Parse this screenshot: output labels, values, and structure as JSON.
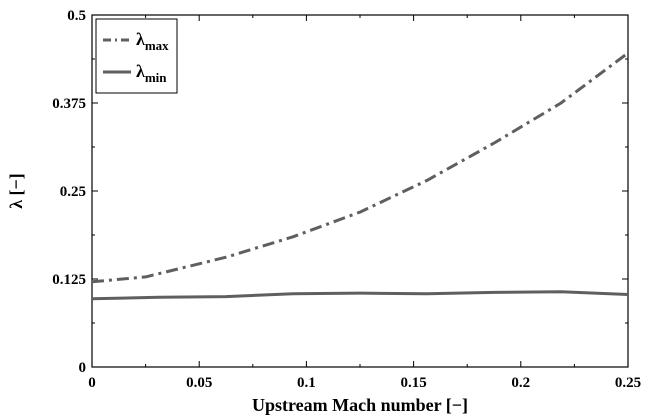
{
  "chart_data": {
    "type": "line",
    "xlabel": "Upstream Mach number [−]",
    "ylabel": "λ [−]",
    "xlim": [
      0,
      0.25
    ],
    "ylim": [
      0,
      0.5
    ],
    "x_ticks": [
      0,
      0.05,
      0.1,
      0.15,
      0.2,
      0.25
    ],
    "x_tick_labels": [
      "0",
      "0.05",
      "0.1",
      "0.15",
      "0.2",
      "0.25"
    ],
    "y_ticks": [
      0,
      0.125,
      0.25,
      0.375,
      0.5
    ],
    "y_tick_labels": [
      "0",
      "0.125",
      "0.25",
      "0.375",
      "0.5"
    ],
    "grid": false,
    "legend": "top-left",
    "series": [
      {
        "name": "λmax",
        "label_main": "λ",
        "label_sub": "max",
        "style": "dash-dot",
        "color": "#5f5f5f",
        "x": [
          0,
          0.025,
          0.0625,
          0.09375,
          0.125,
          0.15625,
          0.1875,
          0.21875,
          0.25
        ],
        "y": [
          0.121,
          0.128,
          0.156,
          0.185,
          0.22,
          0.265,
          0.318,
          0.375,
          0.446
        ]
      },
      {
        "name": "λmin",
        "label_main": "λ",
        "label_sub": "min",
        "style": "solid",
        "color": "#5f5f5f",
        "x": [
          0,
          0.03125,
          0.0625,
          0.09375,
          0.125,
          0.15625,
          0.1875,
          0.21875,
          0.25
        ],
        "y": [
          0.097,
          0.099,
          0.1,
          0.104,
          0.105,
          0.104,
          0.106,
          0.107,
          0.103
        ]
      }
    ]
  }
}
